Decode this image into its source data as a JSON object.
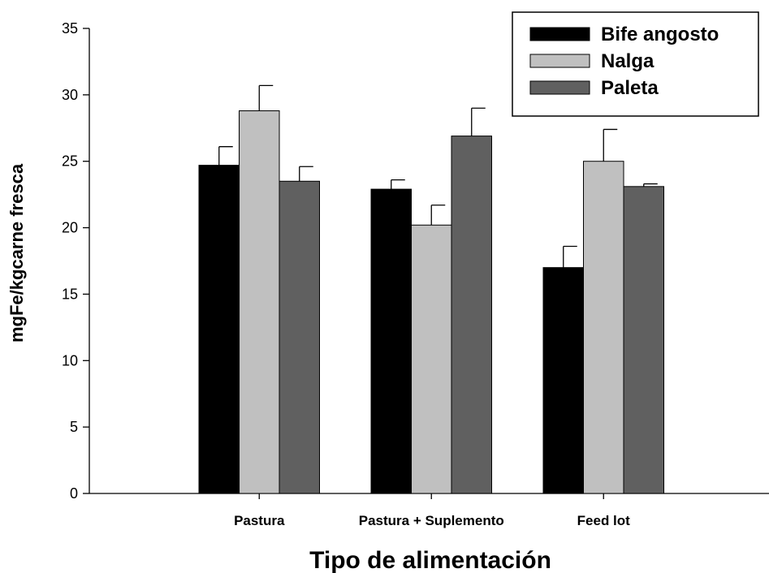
{
  "chart_data": {
    "type": "bar",
    "title": "",
    "xlabel": "Tipo de alimentación",
    "ylabel": "mgFe/kgcarne fresca",
    "ylim": [
      0,
      35
    ],
    "yticks": [
      0,
      5,
      10,
      15,
      20,
      25,
      30,
      35
    ],
    "grid": false,
    "legend_position": "top-right",
    "categories": [
      "Pastura",
      "Pastura + Suplemento",
      "Feed lot"
    ],
    "series": [
      {
        "name": "Bife angosto",
        "color": "#000000",
        "values": [
          24.7,
          22.9,
          17.0
        ],
        "errors": [
          1.4,
          0.7,
          1.6
        ]
      },
      {
        "name": "Nalga",
        "color": "#c0c0c0",
        "values": [
          28.8,
          20.2,
          25.0
        ],
        "errors": [
          1.9,
          1.5,
          2.4
        ]
      },
      {
        "name": "Paleta",
        "color": "#606060",
        "values": [
          23.5,
          26.9,
          23.1
        ],
        "errors": [
          1.1,
          2.1,
          0.2
        ]
      }
    ]
  }
}
